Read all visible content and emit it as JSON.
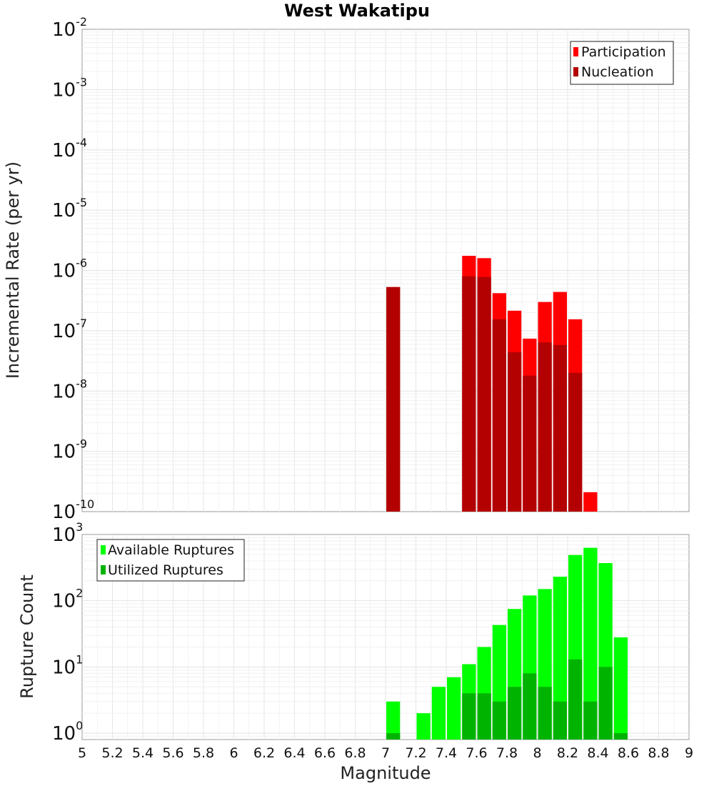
{
  "chart_data": [
    {
      "type": "bar",
      "title": "West Wakatipu",
      "xlabel": "Magnitude",
      "ylabel": "Incremental Rate (per yr)",
      "yscale": "log",
      "xlim": [
        5,
        9
      ],
      "ylim": [
        1e-10,
        0.01
      ],
      "bin_width": 0.1,
      "grid": true,
      "legend_position": "top-right",
      "series": [
        {
          "name": "Participation",
          "color": "#ff0000",
          "x": [
            7.05,
            7.55,
            7.65,
            7.75,
            7.85,
            7.95,
            8.05,
            8.15,
            8.25,
            8.35
          ],
          "values": [
            5.3e-07,
            1.75e-06,
            1.6e-06,
            4.2e-07,
            2.15e-07,
            7.4e-08,
            3e-07,
            4.4e-07,
            1.55e-07,
            2.1e-10
          ]
        },
        {
          "name": "Nucleation",
          "color": "#b30000",
          "x": [
            7.05,
            7.55,
            7.65,
            7.75,
            7.85,
            7.95,
            8.05,
            8.15,
            8.25
          ],
          "values": [
            5.3e-07,
            8e-07,
            7.8e-07,
            1.55e-07,
            4.4e-08,
            1.8e-08,
            6.4e-08,
            5.8e-08,
            2e-08
          ]
        }
      ]
    },
    {
      "type": "bar",
      "xlabel": "Magnitude",
      "ylabel": "Rupture Count",
      "yscale": "log",
      "xlim": [
        5,
        9
      ],
      "ylim": [
        0.8,
        1000
      ],
      "bin_width": 0.1,
      "grid": true,
      "legend_position": "top-left",
      "series": [
        {
          "name": "Available Ruptures",
          "color": "#00ff00",
          "x": [
            7.05,
            7.25,
            7.35,
            7.45,
            7.55,
            7.65,
            7.75,
            7.85,
            7.95,
            8.05,
            8.15,
            8.25,
            8.35,
            8.45,
            8.55
          ],
          "values": [
            3,
            2,
            5,
            7,
            11,
            20,
            43,
            75,
            120,
            150,
            230,
            490,
            630,
            370,
            28
          ]
        },
        {
          "name": "Utilized Ruptures",
          "color": "#00b300",
          "x": [
            7.05,
            7.55,
            7.65,
            7.75,
            7.85,
            7.95,
            8.05,
            8.15,
            8.25,
            8.35,
            8.45,
            8.55
          ],
          "values": [
            1,
            4,
            4,
            3,
            5,
            8,
            5,
            3,
            13,
            3,
            10,
            1
          ]
        }
      ]
    }
  ],
  "x_ticks": [
    "5",
    "5.2",
    "5.4",
    "5.6",
    "5.8",
    "6",
    "6.2",
    "6.4",
    "6.6",
    "6.8",
    "7",
    "7.2",
    "7.4",
    "7.6",
    "7.8",
    "8",
    "8.2",
    "8.4",
    "8.6",
    "8.8",
    "9"
  ],
  "top_y_ticks": [
    {
      "value": 0.01,
      "base": "10",
      "exp": "-2"
    },
    {
      "value": 0.001,
      "base": "10",
      "exp": "-3"
    },
    {
      "value": 0.0001,
      "base": "10",
      "exp": "-4"
    },
    {
      "value": 1e-05,
      "base": "10",
      "exp": "-5"
    },
    {
      "value": 1e-06,
      "base": "10",
      "exp": "-6"
    },
    {
      "value": 1e-07,
      "base": "10",
      "exp": "-7"
    },
    {
      "value": 1e-08,
      "base": "10",
      "exp": "-8"
    },
    {
      "value": 1e-09,
      "base": "10",
      "exp": "-9"
    },
    {
      "value": 1e-10,
      "base": "10",
      "exp": "-10"
    }
  ],
  "bottom_y_ticks": [
    {
      "value": 1000,
      "base": "10",
      "exp": "3"
    },
    {
      "value": 100,
      "base": "10",
      "exp": "2"
    },
    {
      "value": 10,
      "base": "10",
      "exp": "1"
    },
    {
      "value": 1,
      "base": "10",
      "exp": "0"
    }
  ]
}
